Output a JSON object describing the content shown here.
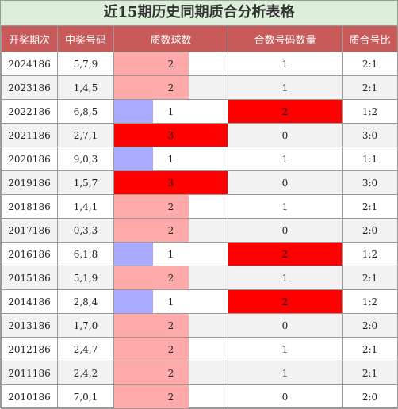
{
  "title": "近15期历史同期质合分析表格",
  "columns": [
    "开奖期次",
    "中奖号码",
    "质数球数",
    "合数号码数量",
    "质合号比"
  ],
  "colors": {
    "header_bg": "#c85a5a",
    "title_bg": "#dcefd9",
    "prime_1": "#aaaaff",
    "prime_2": "#ffaaaa",
    "prime_3": "#ff0000",
    "composite_2": "#ff0000"
  },
  "rows": [
    {
      "period": "2024186",
      "numbers": "5,7,9",
      "prime": 2,
      "composite": 1,
      "ratio": "2:1"
    },
    {
      "period": "2023186",
      "numbers": "1,4,5",
      "prime": 2,
      "composite": 1,
      "ratio": "2:1"
    },
    {
      "period": "2022186",
      "numbers": "6,8,5",
      "prime": 1,
      "composite": 2,
      "ratio": "1:2"
    },
    {
      "period": "2021186",
      "numbers": "2,7,1",
      "prime": 3,
      "composite": 0,
      "ratio": "3:0"
    },
    {
      "period": "2020186",
      "numbers": "9,0,3",
      "prime": 1,
      "composite": 1,
      "ratio": "1:1"
    },
    {
      "period": "2019186",
      "numbers": "1,5,7",
      "prime": 3,
      "composite": 0,
      "ratio": "3:0"
    },
    {
      "period": "2018186",
      "numbers": "1,4,1",
      "prime": 2,
      "composite": 1,
      "ratio": "2:1"
    },
    {
      "period": "2017186",
      "numbers": "0,3,3",
      "prime": 2,
      "composite": 0,
      "ratio": "2:0"
    },
    {
      "period": "2016186",
      "numbers": "6,1,8",
      "prime": 1,
      "composite": 2,
      "ratio": "1:2"
    },
    {
      "period": "2015186",
      "numbers": "5,1,9",
      "prime": 2,
      "composite": 1,
      "ratio": "2:1"
    },
    {
      "period": "2014186",
      "numbers": "2,8,4",
      "prime": 1,
      "composite": 2,
      "ratio": "1:2"
    },
    {
      "period": "2013186",
      "numbers": "1,7,0",
      "prime": 2,
      "composite": 0,
      "ratio": "2:0"
    },
    {
      "period": "2012186",
      "numbers": "2,4,7",
      "prime": 2,
      "composite": 1,
      "ratio": "2:1"
    },
    {
      "period": "2011186",
      "numbers": "2,4,2",
      "prime": 2,
      "composite": 1,
      "ratio": "2:1"
    },
    {
      "period": "2010186",
      "numbers": "7,0,1",
      "prime": 2,
      "composite": 0,
      "ratio": "2:0"
    }
  ]
}
